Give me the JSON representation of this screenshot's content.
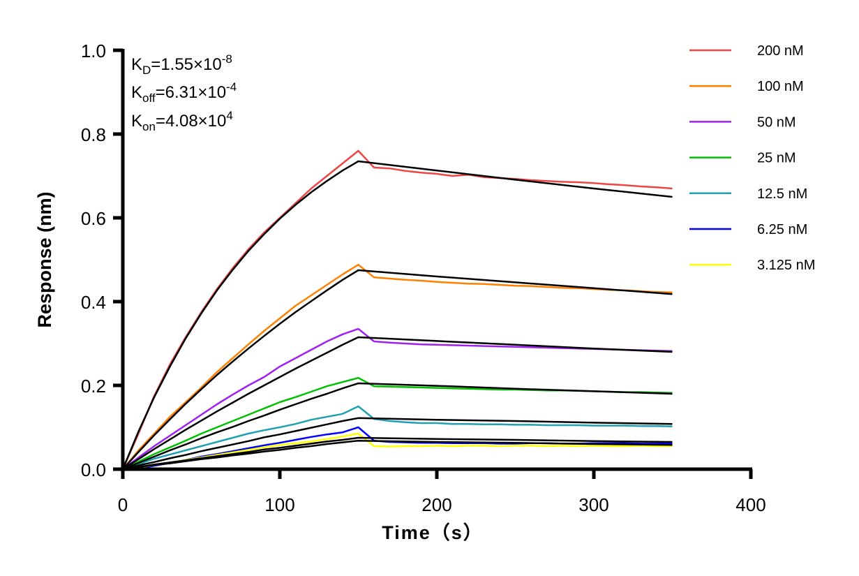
{
  "chart_data": {
    "type": "line",
    "xlabel": "Time（s）",
    "ylabel": "Response (nm)",
    "xlim": [
      0,
      400
    ],
    "ylim": [
      0,
      1.0
    ],
    "xticks": [
      "0",
      "100",
      "200",
      "300",
      "400"
    ],
    "yticks": [
      "0.0",
      "0.2",
      "0.4",
      "0.6",
      "0.8",
      "1.0"
    ],
    "grid": false,
    "legend_position": "top-right",
    "annotations": {
      "kd": {
        "base": "K",
        "sub": "D",
        "value": "=1.55×10",
        "exp": "-8"
      },
      "koff": {
        "base": "K",
        "sub": "off",
        "value": "=6.31×10",
        "exp": "-4"
      },
      "kon": {
        "base": "K",
        "sub": "on",
        "value": "=4.08×10",
        "exp": "4"
      }
    },
    "fit_color": "#000000",
    "measured_time": [
      0,
      10,
      20,
      30,
      40,
      50,
      60,
      70,
      80,
      90,
      100,
      110,
      120,
      130,
      140,
      150,
      160,
      170,
      180,
      190,
      200,
      210,
      220,
      230,
      240,
      250,
      260,
      270,
      280,
      290,
      300,
      310,
      320,
      330,
      340,
      350
    ],
    "fit_time": [
      0,
      10,
      20,
      30,
      40,
      50,
      60,
      70,
      80,
      90,
      100,
      110,
      120,
      130,
      140,
      150,
      200,
      250,
      300,
      350
    ],
    "series": [
      {
        "name": "200 nM",
        "color": "#f04545",
        "measured": [
          0,
          0.085,
          0.175,
          0.25,
          0.315,
          0.375,
          0.43,
          0.48,
          0.525,
          0.565,
          0.6,
          0.635,
          0.67,
          0.7,
          0.73,
          0.76,
          0.72,
          0.718,
          0.712,
          0.708,
          0.705,
          0.7,
          0.703,
          0.697,
          0.695,
          0.693,
          0.69,
          0.688,
          0.686,
          0.685,
          0.683,
          0.68,
          0.678,
          0.675,
          0.673,
          0.67
        ],
        "fit": [
          0,
          0.09,
          0.172,
          0.245,
          0.312,
          0.372,
          0.427,
          0.476,
          0.521,
          0.561,
          0.598,
          0.631,
          0.661,
          0.688,
          0.713,
          0.735,
          0.713,
          0.691,
          0.67,
          0.65
        ]
      },
      {
        "name": "100 nM",
        "color": "#ff8000",
        "measured": [
          0,
          0.045,
          0.085,
          0.125,
          0.16,
          0.195,
          0.232,
          0.265,
          0.298,
          0.33,
          0.36,
          0.39,
          0.415,
          0.44,
          0.465,
          0.488,
          0.458,
          0.455,
          0.452,
          0.45,
          0.447,
          0.445,
          0.443,
          0.442,
          0.44,
          0.438,
          0.437,
          0.435,
          0.433,
          0.432,
          0.43,
          0.428,
          0.427,
          0.425,
          0.423,
          0.422
        ],
        "fit": [
          0,
          0.041,
          0.081,
          0.119,
          0.156,
          0.191,
          0.225,
          0.257,
          0.288,
          0.318,
          0.347,
          0.375,
          0.401,
          0.427,
          0.452,
          0.475,
          0.46,
          0.446,
          0.432,
          0.418
        ]
      },
      {
        "name": "50 nM",
        "color": "#a020f0",
        "measured": [
          0,
          0.028,
          0.055,
          0.08,
          0.105,
          0.13,
          0.155,
          0.178,
          0.2,
          0.22,
          0.245,
          0.265,
          0.285,
          0.305,
          0.322,
          0.335,
          0.305,
          0.302,
          0.3,
          0.298,
          0.297,
          0.296,
          0.295,
          0.294,
          0.293,
          0.292,
          0.291,
          0.29,
          0.289,
          0.288,
          0.287,
          0.286,
          0.285,
          0.284,
          0.283,
          0.282
        ],
        "fit": [
          0,
          0.024,
          0.048,
          0.071,
          0.094,
          0.116,
          0.138,
          0.159,
          0.18,
          0.2,
          0.22,
          0.24,
          0.259,
          0.278,
          0.297,
          0.315,
          0.306,
          0.297,
          0.288,
          0.28
        ]
      },
      {
        "name": "25 nM",
        "color": "#00c000",
        "measured": [
          0,
          0.018,
          0.036,
          0.052,
          0.068,
          0.085,
          0.1,
          0.115,
          0.13,
          0.145,
          0.16,
          0.172,
          0.185,
          0.198,
          0.208,
          0.218,
          0.198,
          0.197,
          0.196,
          0.195,
          0.194,
          0.193,
          0.192,
          0.191,
          0.19,
          0.19,
          0.189,
          0.188,
          0.188,
          0.187,
          0.186,
          0.185,
          0.184,
          0.184,
          0.183,
          0.182
        ],
        "fit": [
          0,
          0.015,
          0.03,
          0.045,
          0.059,
          0.074,
          0.088,
          0.101,
          0.115,
          0.128,
          0.142,
          0.155,
          0.168,
          0.18,
          0.193,
          0.205,
          0.199,
          0.192,
          0.186,
          0.18
        ]
      },
      {
        "name": "12.5 nM",
        "color": "#20a0b0",
        "measured": [
          0,
          0.012,
          0.025,
          0.035,
          0.045,
          0.055,
          0.065,
          0.075,
          0.085,
          0.093,
          0.1,
          0.108,
          0.118,
          0.125,
          0.132,
          0.15,
          0.12,
          0.115,
          0.112,
          0.11,
          0.11,
          0.108,
          0.108,
          0.107,
          0.107,
          0.106,
          0.106,
          0.105,
          0.105,
          0.105,
          0.104,
          0.104,
          0.104,
          0.103,
          0.103,
          0.102
        ],
        "fit": [
          0,
          0.009,
          0.017,
          0.026,
          0.034,
          0.043,
          0.051,
          0.059,
          0.067,
          0.076,
          0.083,
          0.091,
          0.099,
          0.107,
          0.115,
          0.122,
          0.118,
          0.115,
          0.111,
          0.108
        ]
      },
      {
        "name": "6.25 nM",
        "color": "#0000ff",
        "measured": [
          0,
          0.002,
          0.008,
          0.015,
          0.022,
          0.03,
          0.036,
          0.043,
          0.05,
          0.057,
          0.063,
          0.07,
          0.077,
          0.083,
          0.088,
          0.1,
          0.068,
          0.065,
          0.064,
          0.063,
          0.063,
          0.062,
          0.062,
          0.062,
          0.061,
          0.061,
          0.062,
          0.062,
          0.061,
          0.061,
          0.062,
          0.062,
          0.062,
          0.061,
          0.061,
          0.062
        ],
        "fit": [
          0,
          0.005,
          0.011,
          0.016,
          0.021,
          0.026,
          0.031,
          0.036,
          0.041,
          0.047,
          0.051,
          0.056,
          0.061,
          0.066,
          0.07,
          0.075,
          0.072,
          0.07,
          0.067,
          0.065
        ]
      },
      {
        "name": "3.125 nM",
        "color": "#ffff00",
        "measured": [
          0,
          0.004,
          0.01,
          0.016,
          0.022,
          0.028,
          0.034,
          0.04,
          0.046,
          0.052,
          0.058,
          0.062,
          0.066,
          0.072,
          0.078,
          0.085,
          0.055,
          0.054,
          0.055,
          0.055,
          0.056,
          0.055,
          0.056,
          0.056,
          0.055,
          0.056,
          0.056,
          0.055,
          0.056,
          0.055,
          0.056,
          0.055,
          0.055,
          0.056,
          0.055,
          0.055
        ],
        "fit": [
          0,
          0.005,
          0.01,
          0.014,
          0.019,
          0.024,
          0.028,
          0.033,
          0.037,
          0.042,
          0.046,
          0.051,
          0.055,
          0.06,
          0.064,
          0.068,
          0.065,
          0.063,
          0.06,
          0.058
        ]
      }
    ]
  }
}
